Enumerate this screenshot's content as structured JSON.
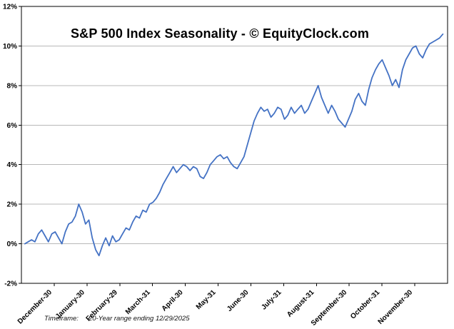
{
  "chart_data": {
    "type": "line",
    "title": "S&P 500 Index Seasonality - © EquityClock.com",
    "footnote_label": "Timeframe:",
    "footnote_value": "20-Year range ending 12/29/2025",
    "ylim": [
      -2,
      12
    ],
    "grid": true,
    "legend": false,
    "unit": "%",
    "line_color": "#4472c4",
    "grid_color": "#b8b8b8",
    "axis_color": "#000000",
    "y_tick_values": [
      12,
      10,
      8,
      6,
      4,
      2,
      0,
      -2
    ],
    "y_tick_labels": [
      "12%",
      "10%",
      "8%",
      "6%",
      "4%",
      "2%",
      "0%",
      "-2%"
    ],
    "x_tick_labels": [
      "December-30",
      "January-30",
      "February-29",
      "March-31",
      "April-30",
      "May-31",
      "June-30",
      "July-31",
      "August-31",
      "September-30",
      "October-31",
      "November-30"
    ],
    "x_start_frac": 0.008,
    "x_end_frac": 0.989,
    "values": [
      0.0,
      0.1,
      0.2,
      0.1,
      0.5,
      0.7,
      0.4,
      0.1,
      0.5,
      0.6,
      0.3,
      0.0,
      0.6,
      1.0,
      1.1,
      1.4,
      2.0,
      1.6,
      1.0,
      1.2,
      0.3,
      -0.3,
      -0.6,
      -0.1,
      0.3,
      -0.1,
      0.4,
      0.1,
      0.2,
      0.5,
      0.8,
      0.7,
      1.1,
      1.4,
      1.3,
      1.7,
      1.6,
      2.0,
      2.1,
      2.3,
      2.6,
      3.0,
      3.3,
      3.6,
      3.9,
      3.6,
      3.8,
      4.0,
      3.9,
      3.7,
      3.9,
      3.8,
      3.4,
      3.3,
      3.6,
      4.0,
      4.2,
      4.4,
      4.5,
      4.3,
      4.4,
      4.1,
      3.9,
      3.8,
      4.1,
      4.4,
      5.0,
      5.6,
      6.2,
      6.6,
      6.9,
      6.7,
      6.8,
      6.4,
      6.6,
      6.9,
      6.8,
      6.3,
      6.5,
      6.9,
      6.6,
      6.8,
      7.0,
      6.6,
      6.8,
      7.2,
      7.6,
      8.0,
      7.4,
      7.0,
      6.6,
      7.0,
      6.7,
      6.3,
      6.1,
      5.9,
      6.3,
      6.7,
      7.3,
      7.6,
      7.2,
      7.0,
      7.8,
      8.4,
      8.8,
      9.1,
      9.3,
      8.9,
      8.5,
      8.0,
      8.3,
      7.9,
      8.8,
      9.3,
      9.6,
      9.9,
      10.0,
      9.6,
      9.4,
      9.8,
      10.1,
      10.2,
      10.3,
      10.4,
      10.6
    ]
  }
}
